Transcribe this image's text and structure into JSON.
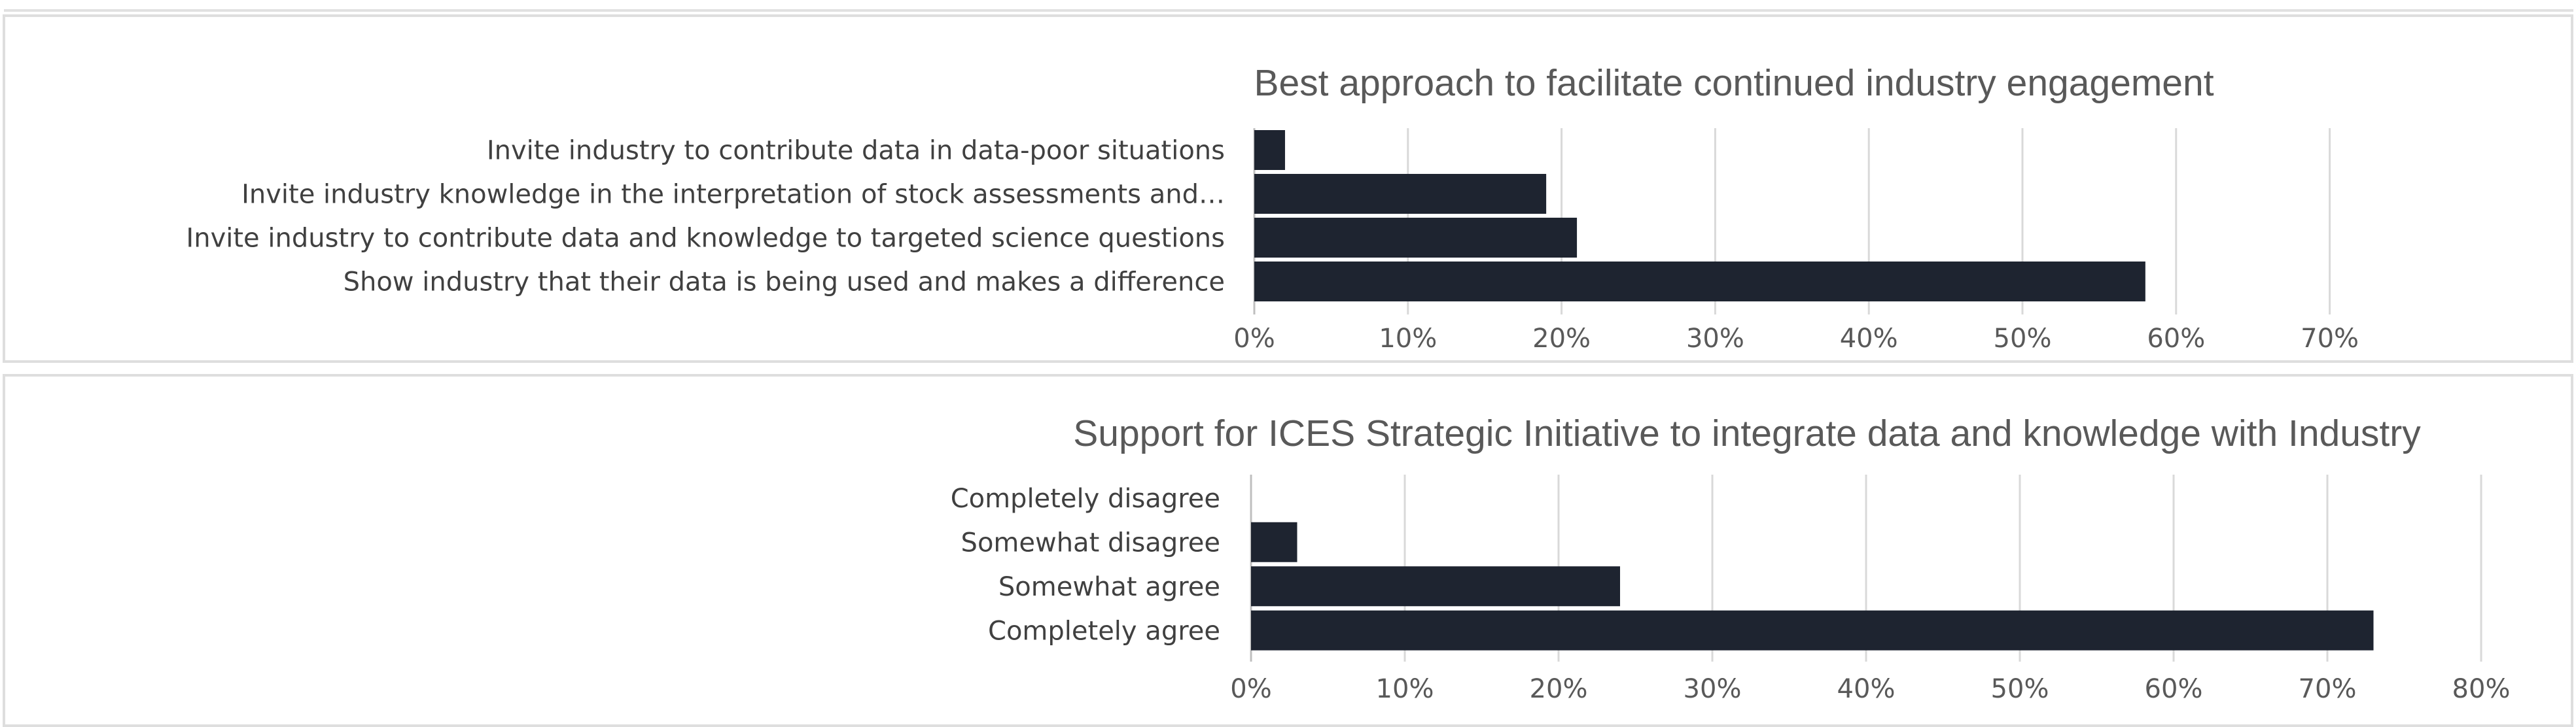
{
  "colors": {
    "bar": "#1e2430",
    "gridline": "#d9d9d9",
    "title_text": "#595959",
    "label_text": "#404040"
  },
  "chart_data": [
    {
      "type": "bar",
      "orientation": "horizontal",
      "title": "Best approach to facilitate continued industry engagement",
      "categories": [
        "Invite industry to contribute data in data-poor situations",
        "Invite industry knowledge in the interpretation of stock assessments and…",
        "Invite industry to contribute data and knowledge to targeted science questions",
        "Show industry that their data is being used and makes a difference"
      ],
      "values": [
        2,
        19,
        21,
        58
      ],
      "unit": "%",
      "xlim": [
        0,
        70
      ],
      "x_ticks": [
        "0%",
        "10%",
        "20%",
        "30%",
        "40%",
        "50%",
        "60%",
        "70%"
      ],
      "grid": true,
      "legend": "none"
    },
    {
      "type": "bar",
      "orientation": "horizontal",
      "title": "Support for ICES Strategic Initiative to integrate data and knowledge with Industry",
      "categories": [
        "Completely disagree",
        "Somewhat disagree",
        "Somewhat agree",
        "Completely agree"
      ],
      "values": [
        0,
        3,
        24,
        73
      ],
      "unit": "%",
      "xlim": [
        0,
        80
      ],
      "x_ticks": [
        "0%",
        "10%",
        "20%",
        "30%",
        "40%",
        "50%",
        "60%",
        "70%",
        "80%"
      ],
      "grid": true,
      "legend": "none"
    }
  ]
}
